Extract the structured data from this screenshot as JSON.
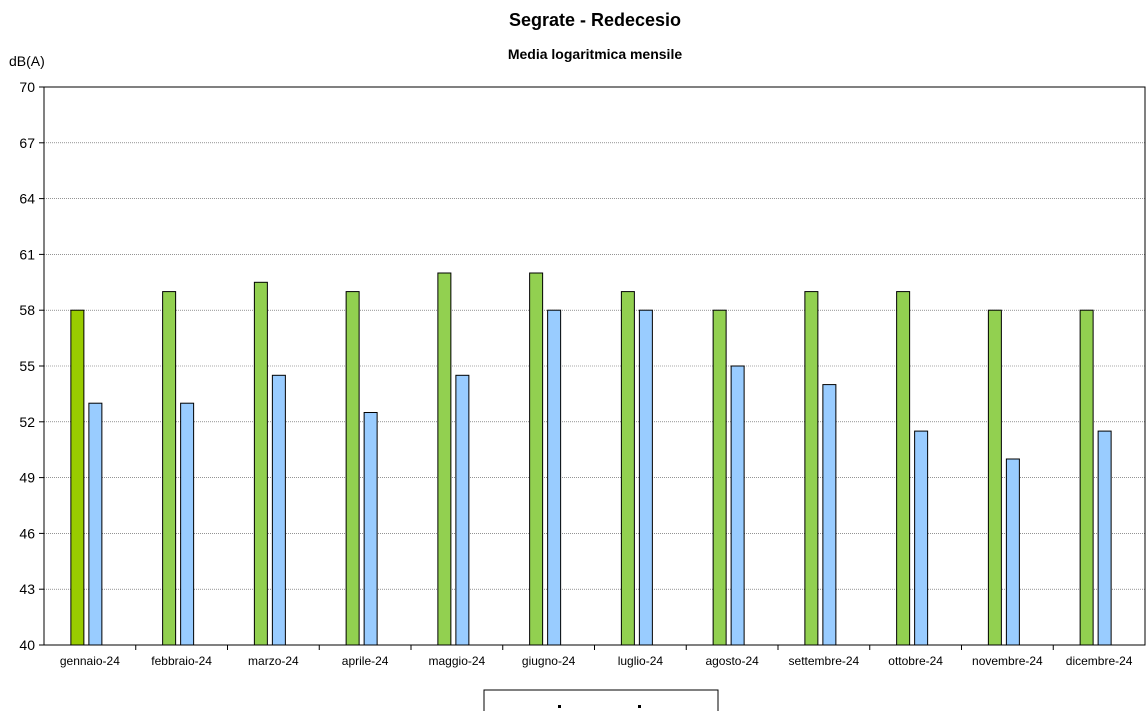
{
  "chart_data": {
    "type": "bar",
    "title": "Segrate - Redecesio",
    "subtitle": "Media logaritmica mensile",
    "ylabel": "dB(A)",
    "xlabel": "",
    "ylim": [
      40,
      70
    ],
    "yticks": [
      40,
      43,
      46,
      49,
      52,
      55,
      58,
      61,
      64,
      67,
      70
    ],
    "grid": true,
    "legend_position": "bottom",
    "categories": [
      "gennaio-24",
      "febbraio-24",
      "marzo-24",
      "aprile-24",
      "maggio-24",
      "giugno-24",
      "luglio-24",
      "agosto-24",
      "settembre-24",
      "ottobre-24",
      "novembre-24",
      "dicembre-24"
    ],
    "series": [
      {
        "color": "#92D050",
        "first_color": "#99CC00",
        "values": [
          58,
          59,
          59.5,
          59,
          60,
          60,
          59,
          58,
          59,
          59,
          58,
          58
        ]
      },
      {
        "color": "#99CCFF",
        "values": [
          53,
          53,
          54.5,
          52.5,
          54.5,
          58,
          58,
          55,
          54,
          51.5,
          50,
          51.5
        ]
      }
    ]
  }
}
